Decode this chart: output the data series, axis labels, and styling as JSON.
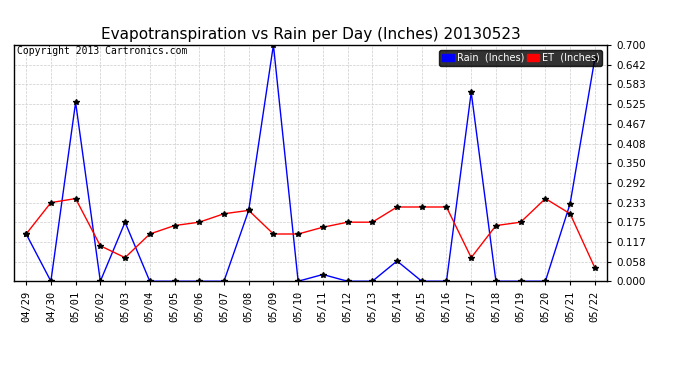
{
  "title": "Evapotranspiration vs Rain per Day (Inches) 20130523",
  "copyright": "Copyright 2013 Cartronics.com",
  "background_color": "#ffffff",
  "plot_bg_color": "#ffffff",
  "grid_color": "#cccccc",
  "x_labels": [
    "04/29",
    "04/30",
    "05/01",
    "05/02",
    "05/03",
    "05/04",
    "05/05",
    "05/06",
    "05/07",
    "05/08",
    "05/09",
    "05/10",
    "05/11",
    "05/12",
    "05/13",
    "05/14",
    "05/15",
    "05/16",
    "05/17",
    "05/18",
    "05/19",
    "05/20",
    "05/21",
    "05/22"
  ],
  "rain_inches": [
    0.14,
    0.0,
    0.53,
    0.0,
    0.175,
    0.0,
    0.0,
    0.0,
    0.0,
    0.21,
    0.7,
    0.0,
    0.02,
    0.0,
    0.0,
    0.06,
    0.0,
    0.0,
    0.56,
    0.0,
    0.0,
    0.0,
    0.23,
    0.66
  ],
  "et_inches": [
    0.14,
    0.233,
    0.245,
    0.105,
    0.07,
    0.14,
    0.165,
    0.175,
    0.2,
    0.21,
    0.14,
    0.14,
    0.16,
    0.175,
    0.175,
    0.22,
    0.22,
    0.22,
    0.07,
    0.165,
    0.175,
    0.245,
    0.2,
    0.04
  ],
  "rain_color": "#0000ff",
  "et_color": "#ff0000",
  "ylim": [
    0.0,
    0.7
  ],
  "yticks": [
    0.0,
    0.058,
    0.117,
    0.175,
    0.233,
    0.292,
    0.35,
    0.408,
    0.467,
    0.525,
    0.583,
    0.642,
    0.7
  ],
  "legend_rain_bg": "#0000ff",
  "legend_et_bg": "#ff0000",
  "title_fontsize": 11,
  "tick_fontsize": 7.5,
  "copyright_fontsize": 7,
  "marker": "*",
  "marker_color": "#000000",
  "marker_size": 4,
  "linewidth": 1.0
}
